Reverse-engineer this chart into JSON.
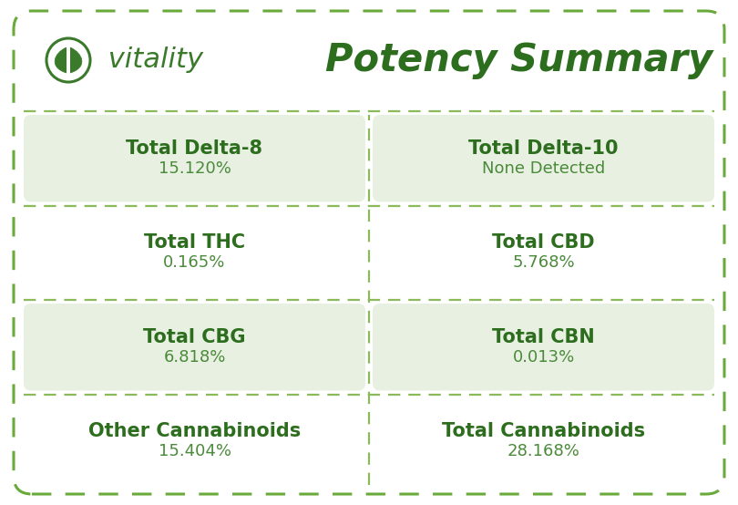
{
  "background_color": "#ffffff",
  "outer_border_color": "#6aaa3a",
  "header_title": "Potency Summary",
  "brand_name": " vitality",
  "rows": [
    [
      {
        "label": "Total Delta-8",
        "value": "15.120%",
        "shaded": true
      },
      {
        "label": "Total Delta-10",
        "value": "None Detected",
        "shaded": true
      }
    ],
    [
      {
        "label": "Total THC",
        "value": "0.165%",
        "shaded": false
      },
      {
        "label": "Total CBD",
        "value": "5.768%",
        "shaded": false
      }
    ],
    [
      {
        "label": "Total CBG",
        "value": "6.818%",
        "shaded": true
      },
      {
        "label": "Total CBN",
        "value": "0.013%",
        "shaded": true
      }
    ],
    [
      {
        "label": "Other Cannabinoids",
        "value": "15.404%",
        "shaded": false
      },
      {
        "label": "Total Cannabinoids",
        "value": "28.168%",
        "shaded": false
      }
    ]
  ],
  "shaded_cell_bg": "#e8f0e2",
  "unshaded_cell_bg": "#ffffff",
  "label_color": "#2d6e1e",
  "value_color": "#4a8a3a",
  "title_color": "#2d6e1e",
  "brand_color": "#3a7a2a",
  "border_dash_color": "#8aba5a",
  "label_fontsize": 15,
  "value_fontsize": 13,
  "title_fontsize": 30,
  "brand_fontsize": 22
}
